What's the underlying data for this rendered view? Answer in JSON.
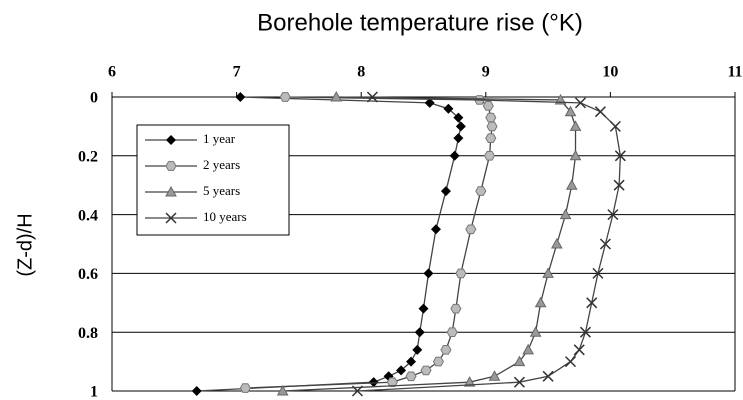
{
  "chart_data": {
    "type": "line",
    "title": "Borehole temperature rise (°K)",
    "y_label": "(Z-d)/H",
    "xlim": [
      6,
      11
    ],
    "xticks": [
      6,
      7,
      8,
      9,
      10,
      11
    ],
    "ylim": [
      0,
      1
    ],
    "yticks": [
      0,
      0.2,
      0.4,
      0.6,
      0.8,
      1
    ],
    "y_inverted": true,
    "grid": true,
    "legend": "upper left",
    "series": [
      {
        "name": "1 year",
        "color": "#000000",
        "marker": "diamond",
        "values": [
          7.03,
          8.55,
          8.7,
          8.78,
          8.8,
          8.78,
          8.75,
          8.68,
          8.6,
          8.54,
          8.5,
          8.47,
          8.45,
          8.4,
          8.32,
          8.22,
          8.1,
          6.68
        ],
        "depth": [
          0,
          0.02,
          0.04,
          0.07,
          0.1,
          0.14,
          0.2,
          0.32,
          0.45,
          0.6,
          0.72,
          0.8,
          0.86,
          0.9,
          0.93,
          0.95,
          0.97,
          1
        ]
      },
      {
        "name": "2 years",
        "color": "#999999",
        "marker": "hexagon",
        "values": [
          7.39,
          8.95,
          9.02,
          9.04,
          9.05,
          9.04,
          9.03,
          8.96,
          8.88,
          8.8,
          8.76,
          8.73,
          8.68,
          8.62,
          8.52,
          8.4,
          8.25,
          7.07
        ],
        "depth": [
          0,
          0.01,
          0.03,
          0.07,
          0.1,
          0.14,
          0.2,
          0.32,
          0.45,
          0.6,
          0.72,
          0.8,
          0.86,
          0.9,
          0.93,
          0.95,
          0.97,
          0.99
        ]
      },
      {
        "name": "5 years",
        "color": "#888888",
        "marker": "triangle",
        "values": [
          7.8,
          9.6,
          9.68,
          9.72,
          9.72,
          9.69,
          9.64,
          9.57,
          9.5,
          9.44,
          9.4,
          9.34,
          9.27,
          9.07,
          8.87,
          7.37
        ],
        "depth": [
          0,
          0.01,
          0.05,
          0.1,
          0.2,
          0.3,
          0.4,
          0.5,
          0.6,
          0.7,
          0.8,
          0.86,
          0.9,
          0.95,
          0.97,
          1
        ]
      },
      {
        "name": "10 years",
        "color": "#333333",
        "marker": "x",
        "values": [
          8.09,
          9.76,
          9.92,
          10.04,
          10.08,
          10.07,
          10.02,
          9.96,
          9.9,
          9.85,
          9.8,
          9.75,
          9.68,
          9.5,
          9.27,
          7.97
        ],
        "depth": [
          0,
          0.02,
          0.05,
          0.1,
          0.2,
          0.3,
          0.4,
          0.5,
          0.6,
          0.7,
          0.8,
          0.86,
          0.9,
          0.95,
          0.97,
          1
        ]
      }
    ]
  }
}
